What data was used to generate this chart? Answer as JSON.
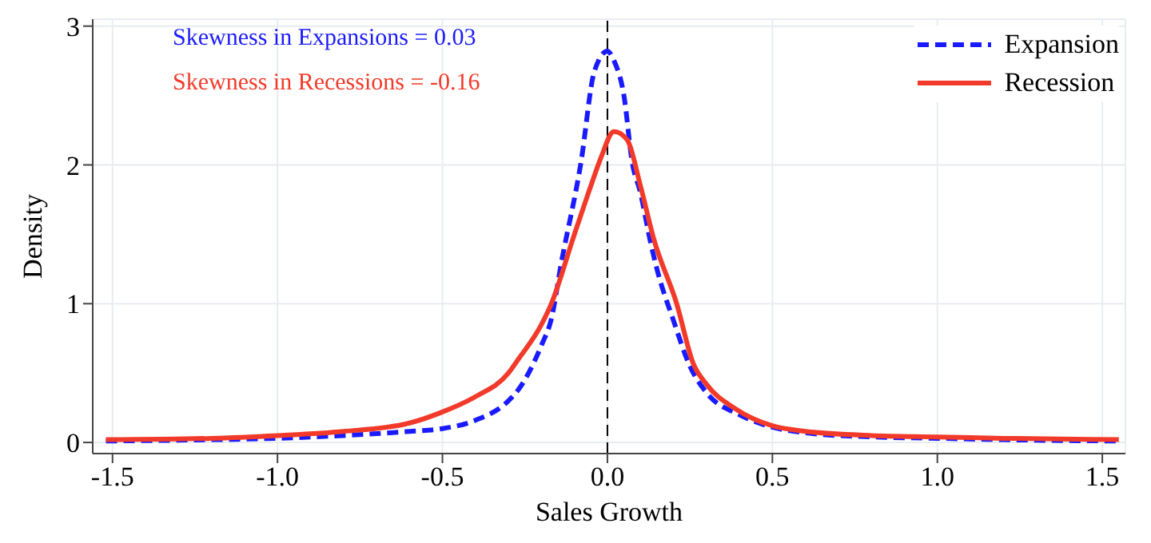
{
  "chart_data": {
    "type": "line",
    "xlabel": "Sales Growth",
    "ylabel": "Density",
    "xlim": [
      -1.56,
      1.57
    ],
    "ylim": [
      -0.08,
      3.05
    ],
    "xticks": [
      -1.5,
      {
        "value": -1,
        "label": "-1.0"
      },
      -0.5,
      {
        "value": 0,
        "label": "0.0"
      },
      0.5,
      {
        "value": 1,
        "label": "1.0"
      },
      1.5
    ],
    "yticks": [
      0,
      1,
      2,
      3
    ],
    "grid": true,
    "legend": "top right",
    "marker": "none",
    "annotations": [
      "Skewness in Expansions = 0.03",
      "Skewness in Recessions = -0.16"
    ],
    "ref_lines": [
      {
        "axis": "x",
        "value": 0,
        "color": "#000000",
        "line_style": "dashed"
      }
    ],
    "series": [
      {
        "name": "Expansion",
        "color": "#1a1aff",
        "line_style": "dashed",
        "x": [
          -1.52,
          -1.2,
          -1.0,
          -0.8,
          -0.6,
          -0.5,
          -0.4,
          -0.3,
          -0.27,
          -0.2,
          -0.17,
          -0.14,
          -0.08,
          -0.04,
          0.0,
          0.02,
          0.05,
          0.075,
          0.1,
          0.13,
          0.15,
          0.2,
          0.25,
          0.3,
          0.4,
          0.5,
          0.6,
          0.8,
          1.0,
          1.2,
          1.55
        ],
        "values": [
          0.01,
          0.02,
          0.03,
          0.05,
          0.08,
          0.1,
          0.16,
          0.3,
          0.38,
          0.7,
          0.89,
          1.29,
          2.02,
          2.67,
          2.82,
          2.75,
          2.5,
          2.02,
          1.8,
          1.45,
          1.25,
          0.88,
          0.55,
          0.36,
          0.2,
          0.11,
          0.07,
          0.04,
          0.03,
          0.02,
          0.01
        ]
      },
      {
        "name": "Recession",
        "color": "#f23a2a",
        "line_style": "solid",
        "x": [
          -1.52,
          -1.2,
          -1.0,
          -0.8,
          -0.6,
          -0.5,
          -0.4,
          -0.3,
          -0.27,
          -0.2,
          -0.17,
          -0.1,
          -0.05,
          -0.02,
          0.02,
          0.06,
          0.1,
          0.14,
          0.21,
          0.26,
          0.3,
          0.39,
          0.5,
          0.6,
          0.8,
          1.0,
          1.2,
          1.55
        ],
        "values": [
          0.02,
          0.03,
          0.05,
          0.08,
          0.14,
          0.22,
          0.33,
          0.5,
          0.6,
          0.85,
          1.0,
          1.5,
          1.85,
          2.05,
          2.24,
          2.18,
          1.85,
          1.47,
          1.0,
          0.57,
          0.42,
          0.24,
          0.12,
          0.08,
          0.05,
          0.04,
          0.03,
          0.02
        ]
      }
    ]
  }
}
